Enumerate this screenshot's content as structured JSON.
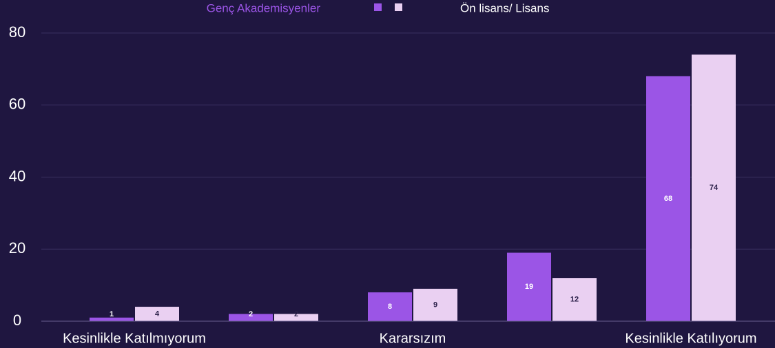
{
  "chart_data": {
    "type": "bar",
    "categories": [
      "Kesinlikle Katılmıyorum",
      null,
      "Kararsızım",
      null,
      "Kesinlikle Katılıyorum"
    ],
    "series": [
      {
        "name": "Genç Akademisyenler",
        "color": "#9b55e6",
        "values": [
          1,
          2,
          8,
          19,
          68
        ]
      },
      {
        "name": "Ön lisans/ Lisans",
        "color": "#ead0f2",
        "values": [
          4,
          2,
          9,
          12,
          74
        ]
      }
    ],
    "ylim": [
      0,
      80
    ],
    "yticks": [
      0,
      20,
      40,
      60,
      80
    ],
    "grid": true,
    "legend": "top"
  }
}
